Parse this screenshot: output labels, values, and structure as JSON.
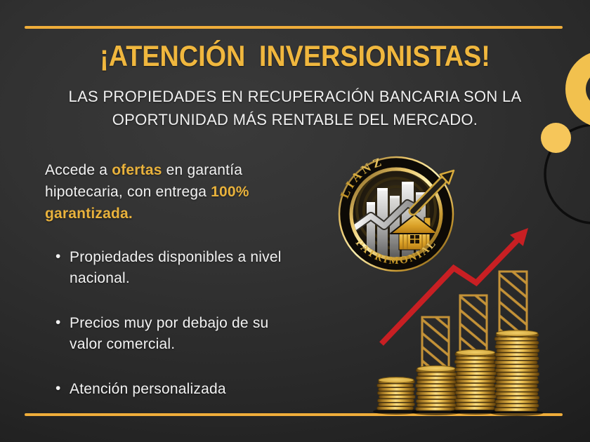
{
  "header": {
    "title": "¡ATENCIÓN INVERSIONISTAS!",
    "subtitle_line1": "LAS PROPIEDADES EN RECUPERACIÓN BANCARIA SON LA",
    "subtitle_line2": "OPORTUNIDAD MÁS RENTABLE DEL MERCADO."
  },
  "intro": {
    "segments": [
      {
        "text": "Accede a "
      },
      {
        "text": "ofertas"
      },
      {
        "text": " en garantía hipotecaria, con entrega "
      },
      {
        "text": "100%"
      },
      {
        "text": " "
      },
      {
        "text": "garantizada."
      }
    ]
  },
  "bullets": [
    "Propiedades disponibles a nivel nacional.",
    "Precios muy por debajo de su valor comercial.",
    "Atención personalizada"
  ],
  "logo": {
    "top_text": "ALIANZA",
    "bottom_text": "PATRIMONIAL"
  },
  "graphics": {
    "logo_badge_icon": "circular gold real-estate emblem with buildings, house and breakout arrow",
    "coin_stacks_icon": "four rising stacks of gold coins",
    "growth_bars_icon": "three gold hatched outline bars increasing in height",
    "growth_arrow_icon": "red zigzag arrow rising to the upper right",
    "decor_circles_icon": "gold ring, gold dot and dark outline circle"
  },
  "colors": {
    "accent_gold": "#F0B73E",
    "body_gold": "#E9B23C",
    "line_gold": "#EFAD3A",
    "decor_gold": "#F2C14E",
    "arrow_red": "#C81F23",
    "text_white": "#F2F2F2",
    "background_dark": "#2B2B2B",
    "coin_gold": "#D8A93C"
  }
}
